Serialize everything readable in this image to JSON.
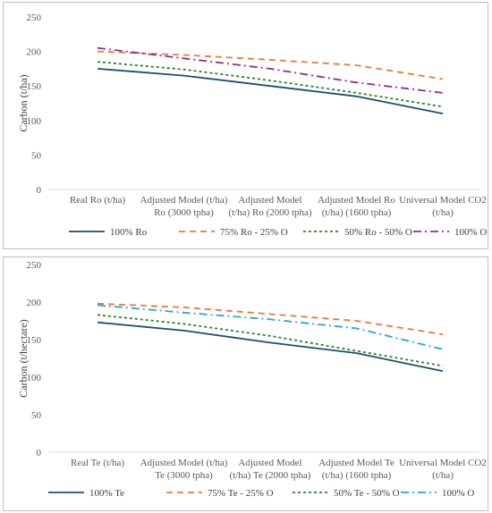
{
  "chart_data": [
    {
      "type": "line",
      "ylabel": "Carbon (t/ha)",
      "xlabel": "",
      "ylim": [
        0,
        250
      ],
      "yticks": [
        0,
        50,
        100,
        150,
        200,
        250
      ],
      "grid": false,
      "legend_position": "bottom",
      "categories": [
        [
          "Real Ro (t/ha)"
        ],
        [
          "Adjusted Model (t/ha)",
          "Ro (3000 tpha)"
        ],
        [
          "Adjusted Model",
          "(t/ha) Ro (2000 tpha)"
        ],
        [
          "Adjusted Model Ro",
          "(t/ha) (1600 tpha)"
        ],
        [
          "Universal Model CO2",
          "(t/ha)"
        ]
      ],
      "series": [
        {
          "name": "100% Ro",
          "values": [
            175,
            165,
            150,
            135,
            110
          ],
          "color": "#1f4e6b",
          "dash": "solid"
        },
        {
          "name": "75% Ro - 25% O",
          "values": [
            200,
            195,
            188,
            180,
            160
          ],
          "color": "#e97a35",
          "dash": "dash"
        },
        {
          "name": "50% Ro - 50% O",
          "values": [
            185,
            174,
            158,
            140,
            120
          ],
          "color": "#2e7d32",
          "dash": "dot"
        },
        {
          "name": "100% O",
          "values": [
            205,
            190,
            175,
            155,
            140
          ],
          "color": "#8e2f8e",
          "dash": "dashdot"
        }
      ]
    },
    {
      "type": "line",
      "ylabel": "Carbon  (t/hectare)",
      "xlabel": "",
      "ylim": [
        0,
        250
      ],
      "yticks": [
        0,
        50,
        100,
        150,
        200,
        250
      ],
      "grid": false,
      "legend_position": "bottom",
      "categories": [
        [
          "Real Te (t/ha)"
        ],
        [
          "Adjusted Model (t/ha)",
          "Te (3000 tpha)"
        ],
        [
          "Adjusted Model",
          "(t/ha) Te (2000 tpha)"
        ],
        [
          "Adjusted Model Te",
          "(t/ha) (1600 tpha)"
        ],
        [
          "Universal Model CO2",
          "(t/ha)"
        ]
      ],
      "series": [
        {
          "name": "100% Te",
          "values": [
            173,
            162,
            146,
            132,
            108
          ],
          "color": "#1f4e6b",
          "dash": "solid"
        },
        {
          "name": "75% Te - 25% O",
          "values": [
            198,
            193,
            184,
            175,
            157
          ],
          "color": "#e97a35",
          "dash": "dash"
        },
        {
          "name": "50% Te - 50% O",
          "values": [
            183,
            171,
            155,
            135,
            115
          ],
          "color": "#2e7d32",
          "dash": "dot"
        },
        {
          "name": "100% O",
          "values": [
            196,
            186,
            177,
            165,
            137
          ],
          "color": "#2aa6d6",
          "dash": "dashdot"
        }
      ]
    }
  ]
}
